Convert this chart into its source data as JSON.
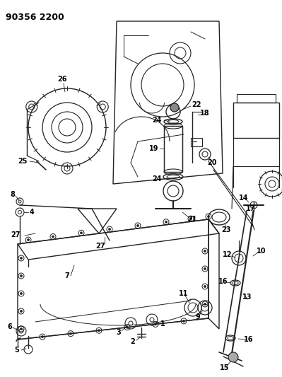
{
  "title": "90356 2200",
  "bg_color": "#ffffff",
  "lc": "#222222",
  "figsize": [
    3.99,
    5.33
  ],
  "dpi": 100
}
